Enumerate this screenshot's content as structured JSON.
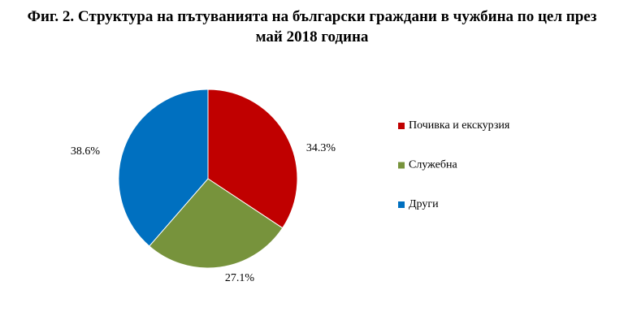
{
  "chart_data": {
    "type": "pie",
    "title": "Фиг. 2. Структура на пътуванията на български граждани в чужбина по цел през май 2018 година",
    "categories": [
      "Почивка и екскурзия",
      "Служебна",
      "Други"
    ],
    "values": [
      34.3,
      27.1,
      38.6
    ],
    "value_labels": [
      "34.3%",
      "27.1%",
      "38.6%"
    ],
    "colors": [
      "#c00000",
      "#77933c",
      "#0070c0"
    ],
    "legend": "right"
  }
}
